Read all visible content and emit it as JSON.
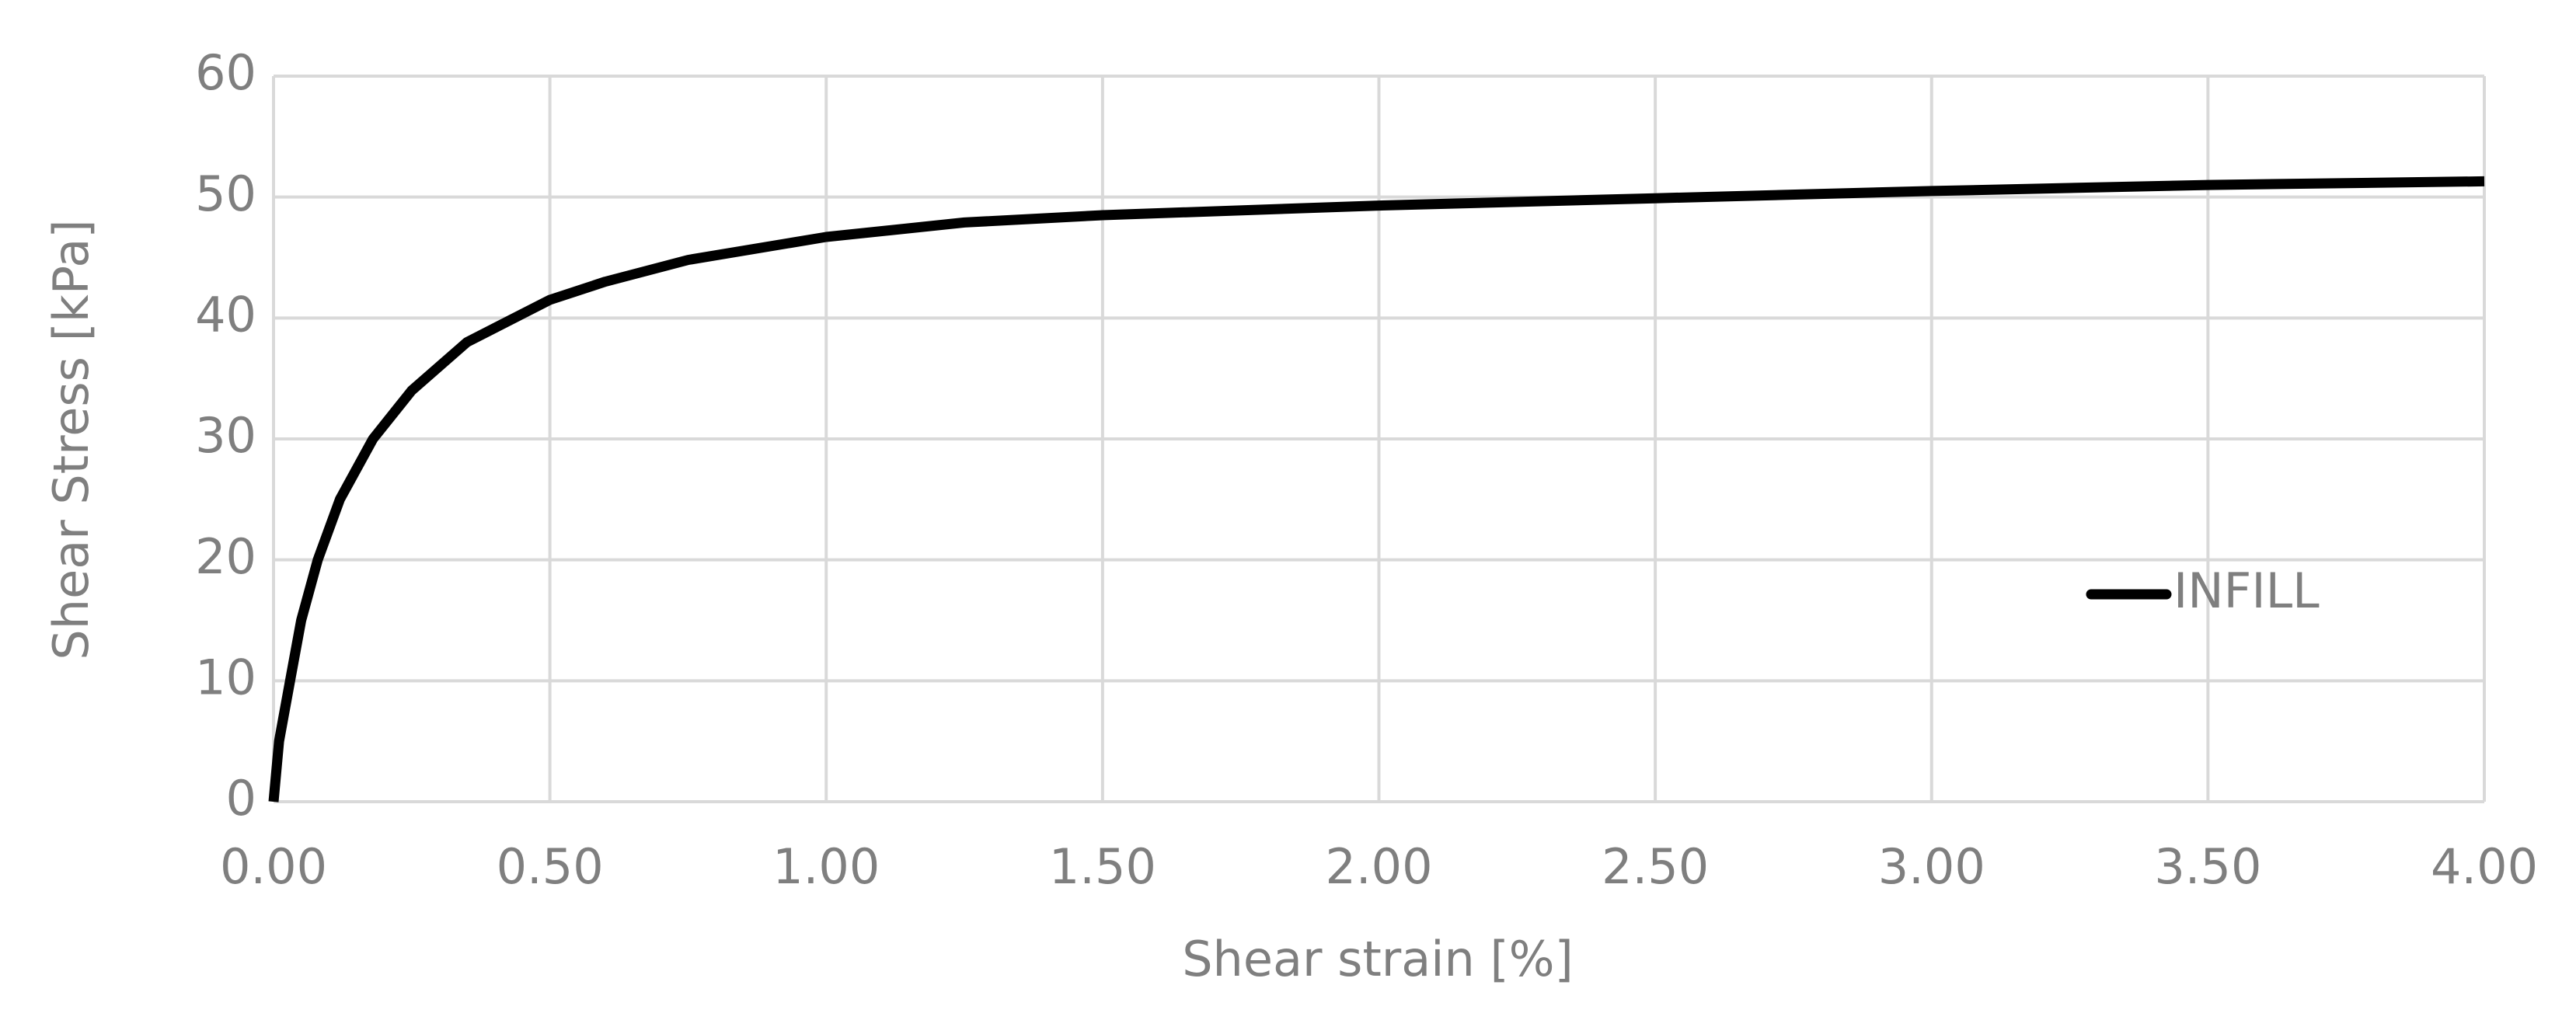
{
  "chart_data": {
    "type": "line",
    "x_label": "Shear strain [%]",
    "y_label": "Shear Stress [kPa]",
    "series": [
      {
        "name": "INFILL",
        "color": "#000000",
        "x": [
          0,
          0.01,
          0.03,
          0.05,
          0.08,
          0.12,
          0.18,
          0.25,
          0.35,
          0.5,
          0.6,
          0.75,
          1.0,
          1.25,
          1.5,
          2.0,
          2.5,
          3.0,
          3.5,
          4.0
        ],
        "values": [
          0,
          5,
          10,
          15,
          20,
          25,
          30,
          34,
          38,
          41.5,
          43,
          44.8,
          46.7,
          47.9,
          48.5,
          49.3,
          49.9,
          50.5,
          51,
          51.3
        ]
      }
    ],
    "xlim": [
      0,
      4
    ],
    "xticks": [
      {
        "value": 0,
        "label": "0.00"
      },
      {
        "value": 0.5,
        "label": "0.50"
      },
      {
        "value": 1,
        "label": "1.00"
      },
      {
        "value": 1.5,
        "label": "1.50"
      },
      {
        "value": 2,
        "label": "2.00"
      },
      {
        "value": 2.5,
        "label": "2.50"
      },
      {
        "value": 3,
        "label": "3.00"
      },
      {
        "value": 3.5,
        "label": "3.50"
      },
      {
        "value": 4,
        "label": "4.00"
      }
    ],
    "ylim": [
      0,
      60
    ],
    "yticks": [
      0,
      10,
      20,
      30,
      40,
      50,
      60
    ],
    "grid": true,
    "legend": "right"
  }
}
